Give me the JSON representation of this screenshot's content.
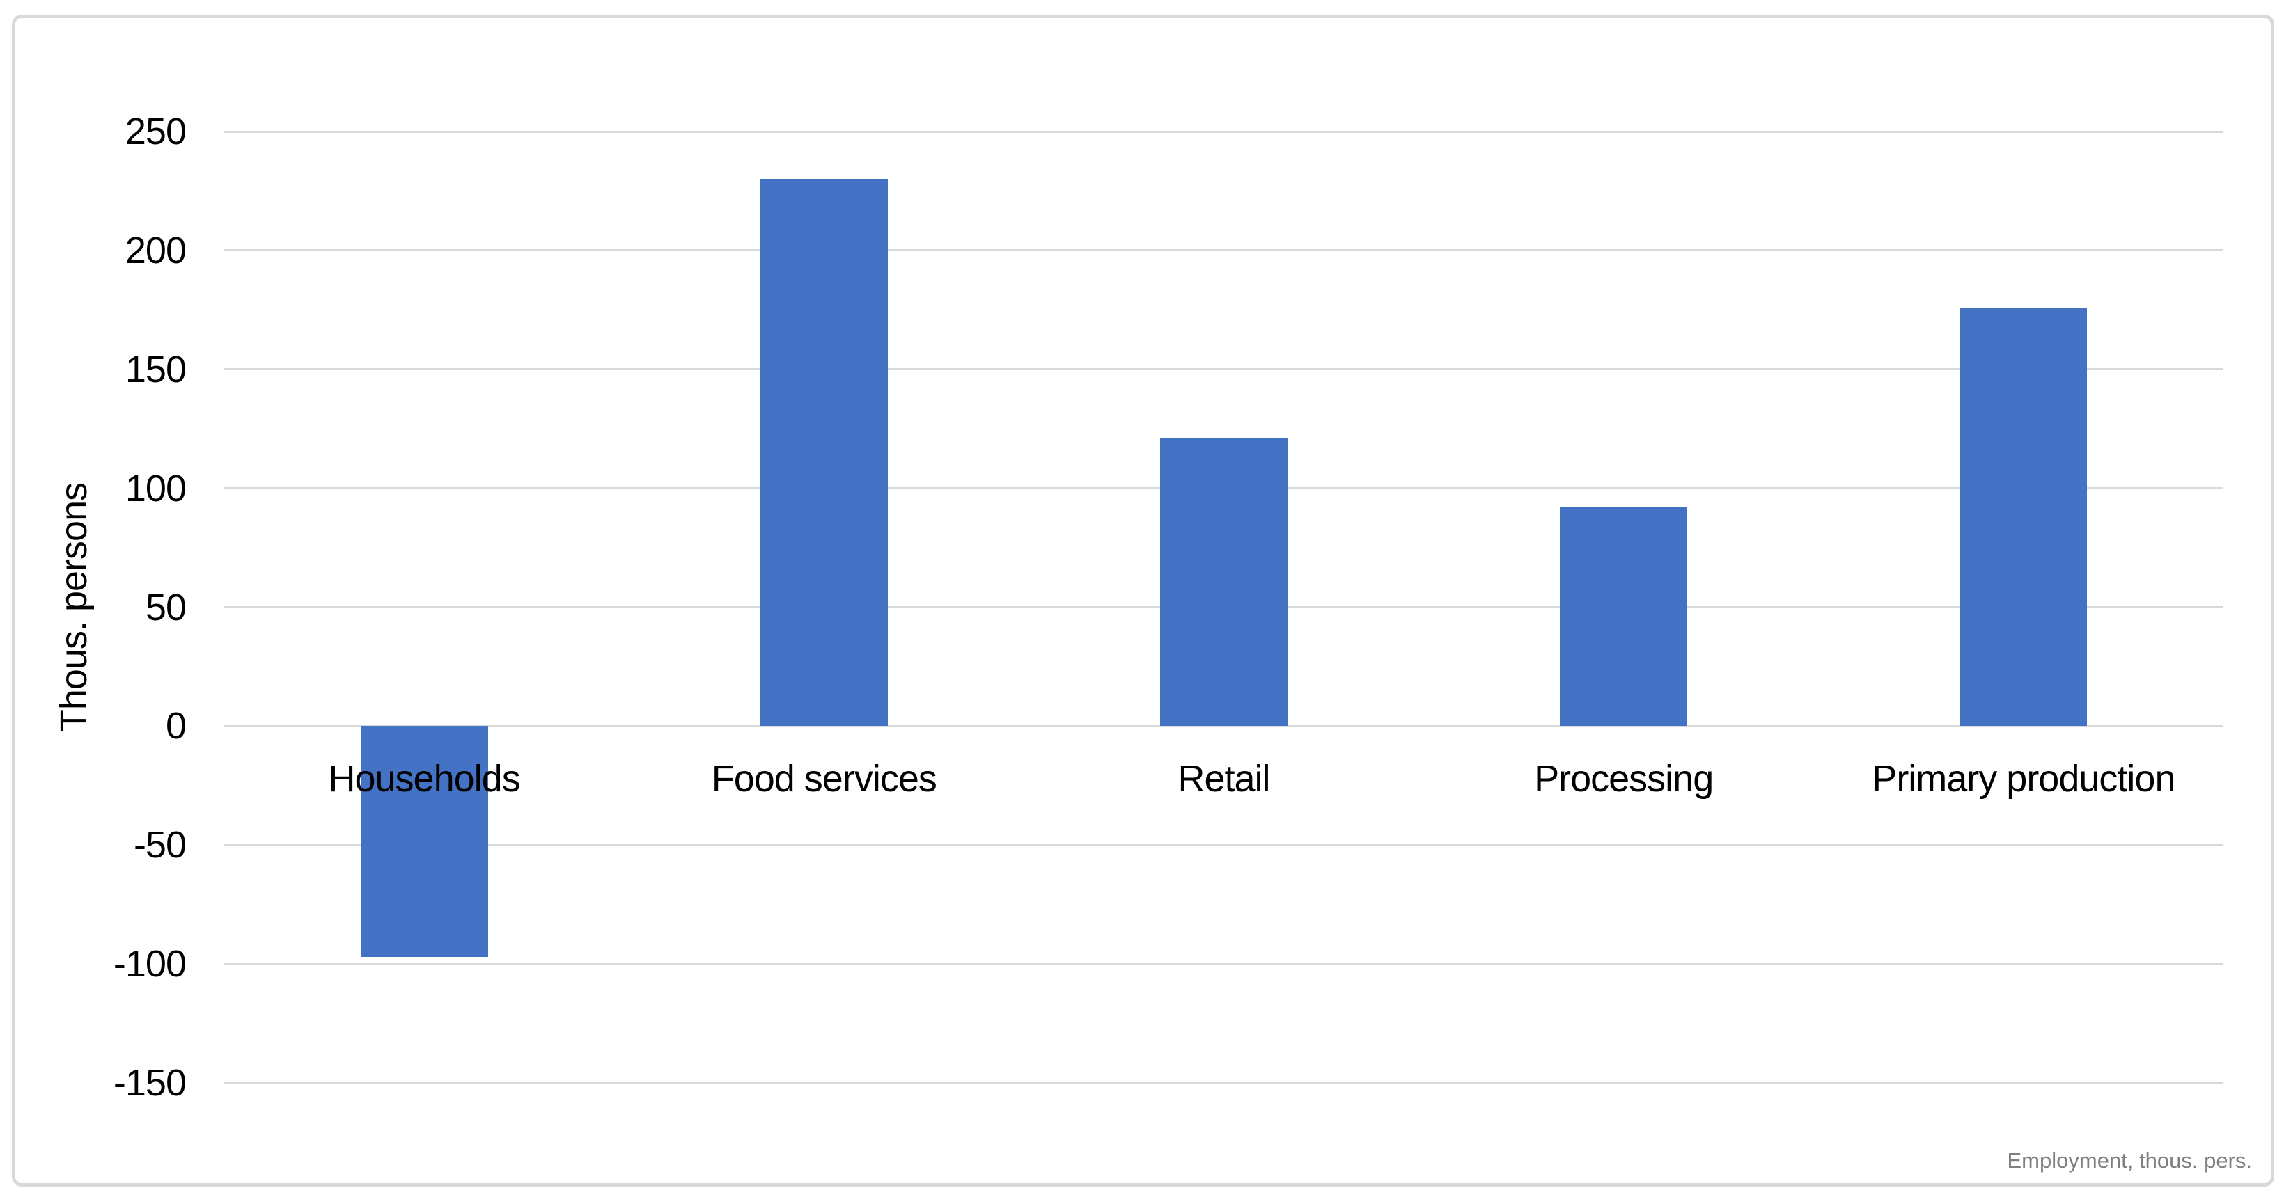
{
  "chart_data": {
    "type": "bar",
    "categories": [
      "Households",
      "Food services",
      "Retail",
      "Processing",
      "Primary production"
    ],
    "values": [
      -97,
      230,
      121,
      92,
      176
    ],
    "xlabel": "",
    "ylabel": "Thous. persons",
    "yticks": [
      250,
      200,
      150,
      100,
      50,
      0,
      -50,
      -100,
      -150
    ],
    "ylim": [
      -150,
      250
    ],
    "grid": true,
    "legend": false,
    "bar_color": "#4472C4",
    "gridline_color": "#D9D9D9",
    "frame_color": "#D9D9D9",
    "label_color": "#000000",
    "annotation": "Employment, thous. pers.",
    "annotation_color": "#7F7F7F"
  }
}
